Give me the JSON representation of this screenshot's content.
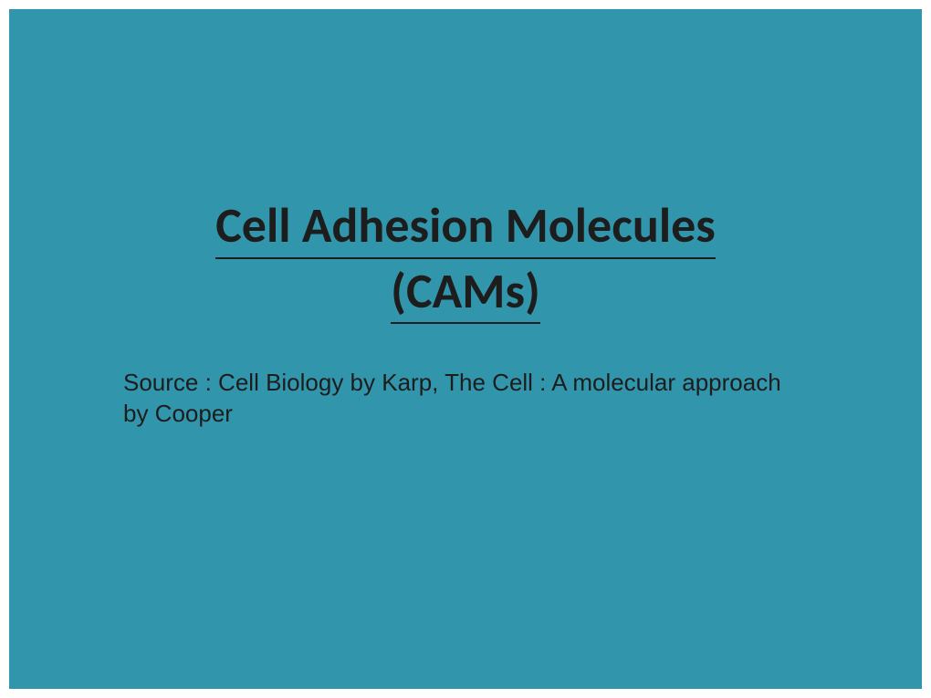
{
  "slide": {
    "background_color": "#3195ac",
    "page_background": "#ffffff",
    "title_line_1": "Cell Adhesion Molecules",
    "title_line_2": "(CAMs)",
    "title_color": "#1d1d1d",
    "title_fontsize": 54,
    "title_font_family": "Calibri, Arial, sans-serif",
    "title_font_weight": "bold",
    "title_underline_color": "#1d1d1d",
    "source_text": "Source : Cell Biology  by Karp, The Cell : A molecular approach by Cooper",
    "source_color": "#1d1d1d",
    "source_fontsize": 26,
    "source_font_family": "Arial, sans-serif"
  }
}
